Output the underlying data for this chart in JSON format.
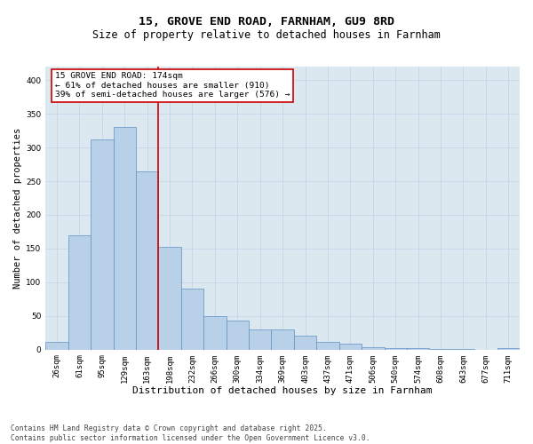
{
  "title_line1": "15, GROVE END ROAD, FARNHAM, GU9 8RD",
  "title_line2": "Size of property relative to detached houses in Farnham",
  "xlabel": "Distribution of detached houses by size in Farnham",
  "ylabel": "Number of detached properties",
  "categories": [
    "26sqm",
    "61sqm",
    "95sqm",
    "129sqm",
    "163sqm",
    "198sqm",
    "232sqm",
    "266sqm",
    "300sqm",
    "334sqm",
    "369sqm",
    "403sqm",
    "437sqm",
    "471sqm",
    "506sqm",
    "540sqm",
    "574sqm",
    "608sqm",
    "643sqm",
    "677sqm",
    "711sqm"
  ],
  "values": [
    11,
    170,
    312,
    330,
    265,
    152,
    91,
    50,
    43,
    30,
    30,
    21,
    12,
    9,
    4,
    2,
    2,
    1,
    1,
    0,
    2
  ],
  "bar_color": "#b8d0e8",
  "bar_edge_color": "#6090c0",
  "vline_color": "#cc0000",
  "annotation_text": "15 GROVE END ROAD: 174sqm\n← 61% of detached houses are smaller (910)\n39% of semi-detached houses are larger (576) →",
  "annotation_box_color": "#ffffff",
  "annotation_border_color": "#cc0000",
  "ylim": [
    0,
    420
  ],
  "yticks": [
    0,
    50,
    100,
    150,
    200,
    250,
    300,
    350,
    400
  ],
  "grid_color": "#c8d4e8",
  "background_color": "#dce8f0",
  "fig_background": "#ffffff",
  "footer_line1": "Contains HM Land Registry data © Crown copyright and database right 2025.",
  "footer_line2": "Contains public sector information licensed under the Open Government Licence v3.0.",
  "title_fontsize": 9.5,
  "subtitle_fontsize": 8.5,
  "xlabel_fontsize": 8,
  "ylabel_fontsize": 7.5,
  "tick_fontsize": 6.5,
  "annot_fontsize": 6.8,
  "footer_fontsize": 5.8
}
